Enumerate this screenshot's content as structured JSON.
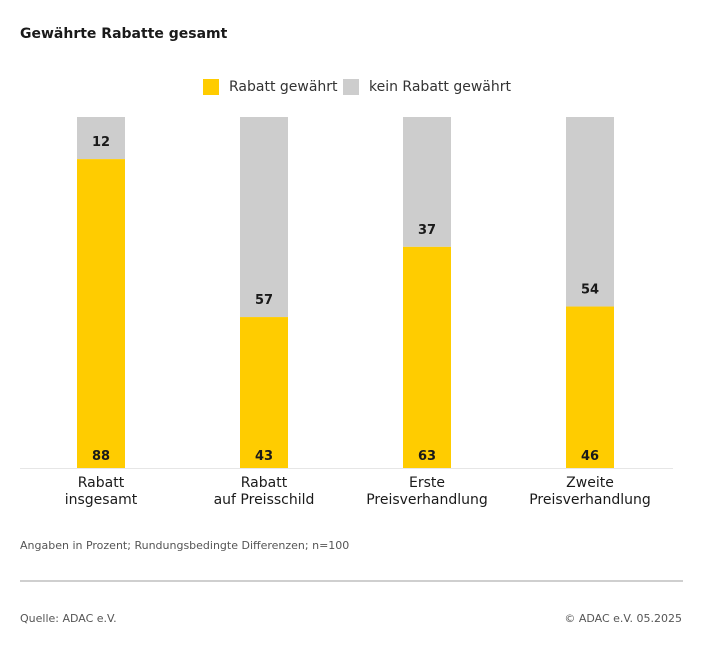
{
  "title": "Gewährte Rabatte gesamt",
  "legend": [
    {
      "label": "Rabatt gewährt",
      "color": "#FFCC00"
    },
    {
      "label": "kein Rabatt gewährt",
      "color": "#CDCDCD"
    }
  ],
  "chart_data": {
    "type": "bar",
    "stacked": true,
    "title": "Gewährte Rabatte gesamt",
    "categories": [
      [
        "Rabatt",
        "insgesamt"
      ],
      [
        "Rabatt",
        "auf Preisschild"
      ],
      [
        "Erste",
        "Preisverhandlung"
      ],
      [
        "Zweite",
        "Preisverhandlung"
      ]
    ],
    "series": [
      {
        "name": "Rabatt gewährt",
        "color": "#FFCC00",
        "values": [
          88,
          43,
          63,
          46
        ]
      },
      {
        "name": "kein Rabatt gewährt",
        "color": "#CDCDCD",
        "values": [
          12,
          57,
          37,
          54
        ]
      }
    ],
    "ylim": [
      0,
      100
    ],
    "xlabel": "",
    "ylabel": "",
    "legend_position": "top-center"
  },
  "note": "Angaben in Prozent; Rundungsbedingte Differenzen; n=100",
  "source": "Quelle: ADAC e.V.",
  "copyright": "© ADAC e.V. 05.2025"
}
